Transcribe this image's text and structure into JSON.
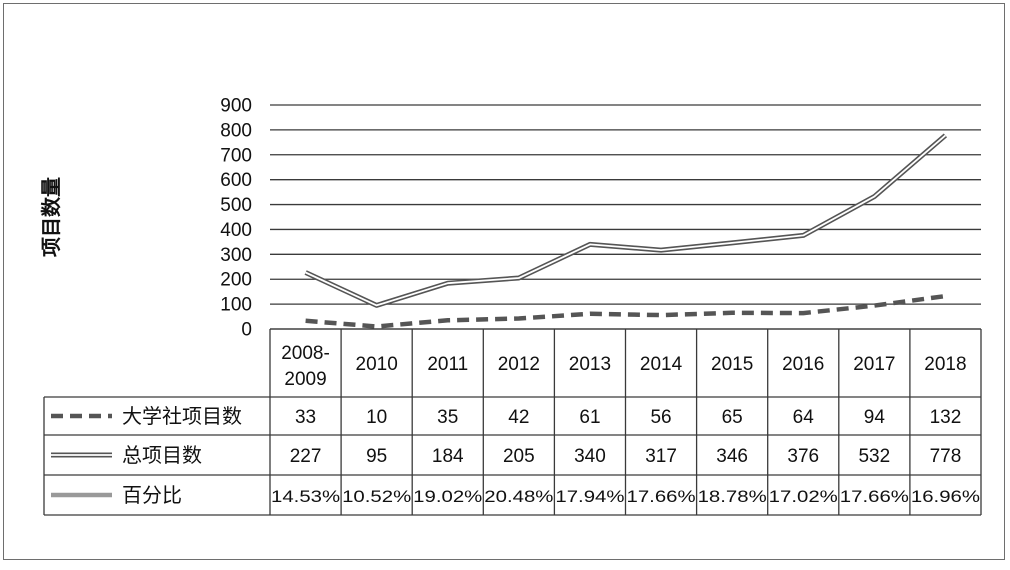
{
  "chart_data": {
    "type": "line",
    "title": "",
    "xlabel": "",
    "ylabel": "项目数量",
    "ylim": [
      0,
      900
    ],
    "yticks": [
      0,
      100,
      200,
      300,
      400,
      500,
      600,
      700,
      800,
      900
    ],
    "grid": true,
    "legend": "data-table-left",
    "categories": [
      "2008-2009",
      "2010",
      "2011",
      "2012",
      "2013",
      "2014",
      "2015",
      "2016",
      "2017",
      "2018"
    ],
    "series": [
      {
        "name": "大学社项目数",
        "style": "dashed",
        "color": "#555555",
        "values": [
          33,
          10,
          35,
          42,
          61,
          56,
          65,
          64,
          94,
          132
        ],
        "labels": [
          "33",
          "10",
          "35",
          "42",
          "61",
          "56",
          "65",
          "64",
          "94",
          "132"
        ]
      },
      {
        "name": "总项目数",
        "style": "double",
        "color": "#555555",
        "values": [
          227,
          95,
          184,
          205,
          340,
          317,
          346,
          376,
          532,
          778
        ],
        "labels": [
          "227",
          "95",
          "184",
          "205",
          "340",
          "317",
          "346",
          "376",
          "532",
          "778"
        ]
      },
      {
        "name": "百分比",
        "style": "solid",
        "color": "#999999",
        "values": [
          14.53,
          10.52,
          19.02,
          20.48,
          17.94,
          17.66,
          18.78,
          17.02,
          17.66,
          16.96
        ],
        "labels": [
          "14.53%",
          "10.52%",
          "19.02%",
          "20.48%",
          "17.94%",
          "17.66%",
          "18.78%",
          "17.02%",
          "17.66%",
          "16.96%"
        ]
      }
    ]
  }
}
